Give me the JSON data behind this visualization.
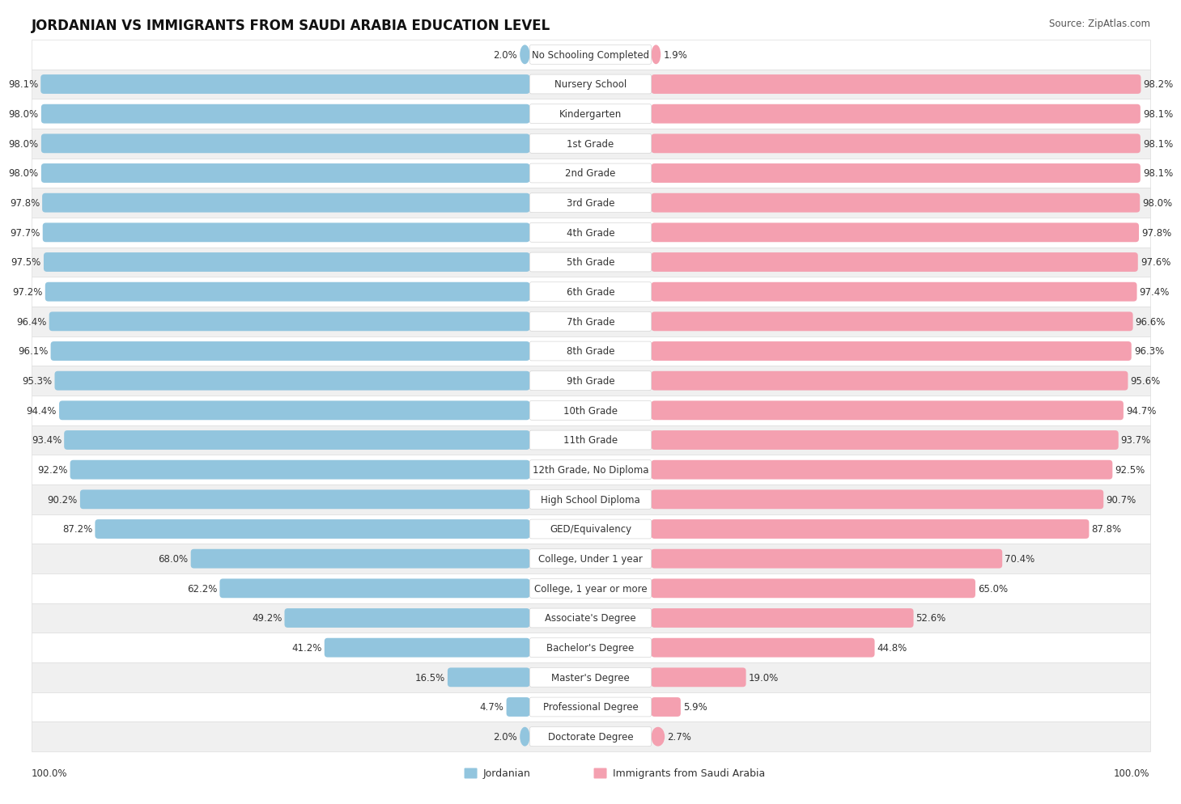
{
  "title": "JORDANIAN VS IMMIGRANTS FROM SAUDI ARABIA EDUCATION LEVEL",
  "source": "Source: ZipAtlas.com",
  "categories": [
    "No Schooling Completed",
    "Nursery School",
    "Kindergarten",
    "1st Grade",
    "2nd Grade",
    "3rd Grade",
    "4th Grade",
    "5th Grade",
    "6th Grade",
    "7th Grade",
    "8th Grade",
    "9th Grade",
    "10th Grade",
    "11th Grade",
    "12th Grade, No Diploma",
    "High School Diploma",
    "GED/Equivalency",
    "College, Under 1 year",
    "College, 1 year or more",
    "Associate's Degree",
    "Bachelor's Degree",
    "Master's Degree",
    "Professional Degree",
    "Doctorate Degree"
  ],
  "jordanian": [
    2.0,
    98.1,
    98.0,
    98.0,
    98.0,
    97.8,
    97.7,
    97.5,
    97.2,
    96.4,
    96.1,
    95.3,
    94.4,
    93.4,
    92.2,
    90.2,
    87.2,
    68.0,
    62.2,
    49.2,
    41.2,
    16.5,
    4.7,
    2.0
  ],
  "saudi": [
    1.9,
    98.2,
    98.1,
    98.1,
    98.1,
    98.0,
    97.8,
    97.6,
    97.4,
    96.6,
    96.3,
    95.6,
    94.7,
    93.7,
    92.5,
    90.7,
    87.8,
    70.4,
    65.0,
    52.6,
    44.8,
    19.0,
    5.9,
    2.7
  ],
  "blue_color": "#92C5DE",
  "pink_color": "#F4A0B0",
  "label_fontsize": 8.5,
  "value_fontsize": 8.5,
  "title_fontsize": 12,
  "legend_blue": "Jordanian",
  "legend_pink": "Immigrants from Saudi Arabia",
  "row_colors": [
    "#FFFFFF",
    "#F0F0F0"
  ],
  "border_color": "#DDDDDD"
}
